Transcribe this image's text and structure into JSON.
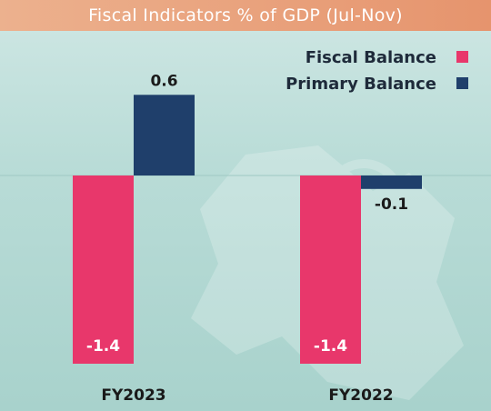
{
  "chart_data": {
    "type": "bar",
    "title": "Fiscal Indicators % of GDP (Jul-Nov)",
    "categories": [
      "FY2023",
      "FY2022"
    ],
    "series": [
      {
        "name": "Fiscal Balance",
        "color": "#e8376b",
        "values": [
          -1.4,
          -1.4
        ],
        "labels": [
          "-1.4",
          "-1.4"
        ]
      },
      {
        "name": "Primary Balance",
        "color": "#1f3f6b",
        "values": [
          0.6,
          -0.1
        ],
        "labels": [
          "0.6",
          "-0.1"
        ]
      }
    ],
    "legend_position": "top-right",
    "ylim": [
      -1.4,
      0.6
    ],
    "grid": false
  }
}
